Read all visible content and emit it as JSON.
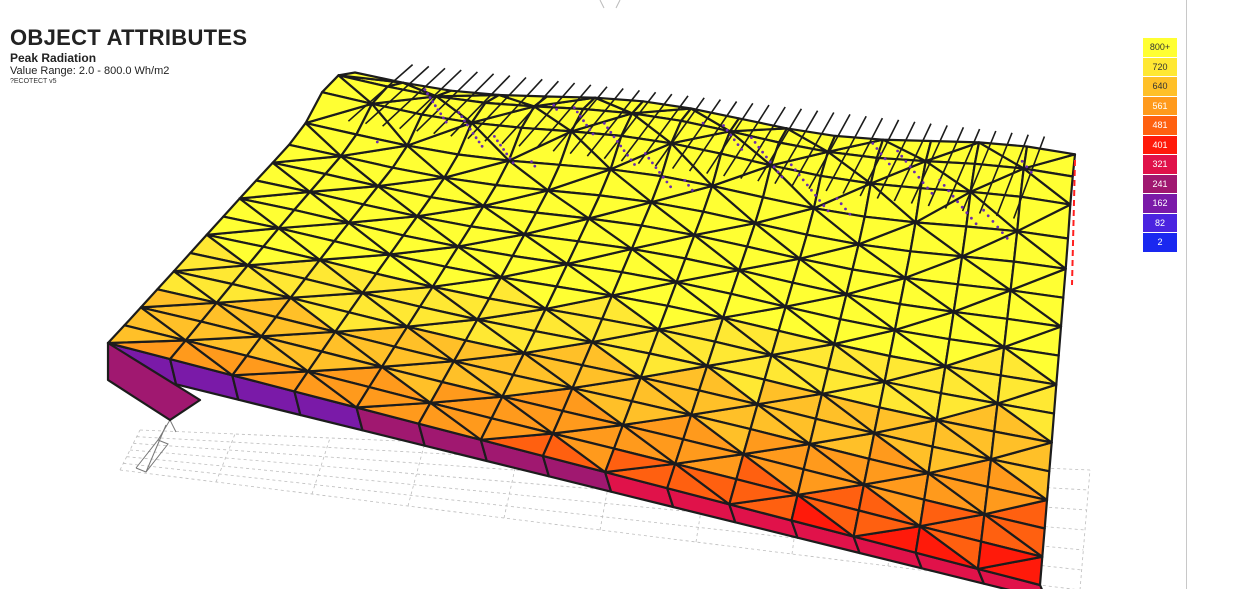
{
  "header": {
    "title": "OBJECT ATTRIBUTES",
    "subtitle": "Peak Radiation",
    "range": "Value Range: 2.0 - 800.0 Wh/m2",
    "software": "?ECOTECT v5"
  },
  "legend": {
    "entries": [
      {
        "label": "800+",
        "color": "#ffff33",
        "text_color": "#333333"
      },
      {
        "label": "720",
        "color": "#ffe833",
        "text_color": "#333333"
      },
      {
        "label": "640",
        "color": "#ffc028",
        "text_color": "#333333"
      },
      {
        "label": "561",
        "color": "#ff9a1c",
        "text_color": "#ffffff"
      },
      {
        "label": "481",
        "color": "#ff6010",
        "text_color": "#ffffff"
      },
      {
        "label": "401",
        "color": "#ff1a0a",
        "text_color": "#ffffff"
      },
      {
        "label": "321",
        "color": "#e0124a",
        "text_color": "#ffffff"
      },
      {
        "label": "241",
        "color": "#a01870",
        "text_color": "#ffffff"
      },
      {
        "label": "162",
        "color": "#7a1aa8",
        "text_color": "#ffffff"
      },
      {
        "label": "82",
        "color": "#4a24e0",
        "text_color": "#ffffff"
      },
      {
        "label": "2",
        "color": "#1a28f0",
        "text_color": "#ffffff"
      }
    ]
  },
  "model": {
    "face_colors": [
      "#ffff33",
      "#ffe833",
      "#ffc028",
      "#ff9a1c",
      "#ff6010",
      "#ff1a0a",
      "#e0124a",
      "#a01870",
      "#7a1aa8"
    ],
    "edge_color": "#1c1c1c",
    "grid_color": "#bdbdbd",
    "icon": "north-arrow-icon"
  }
}
